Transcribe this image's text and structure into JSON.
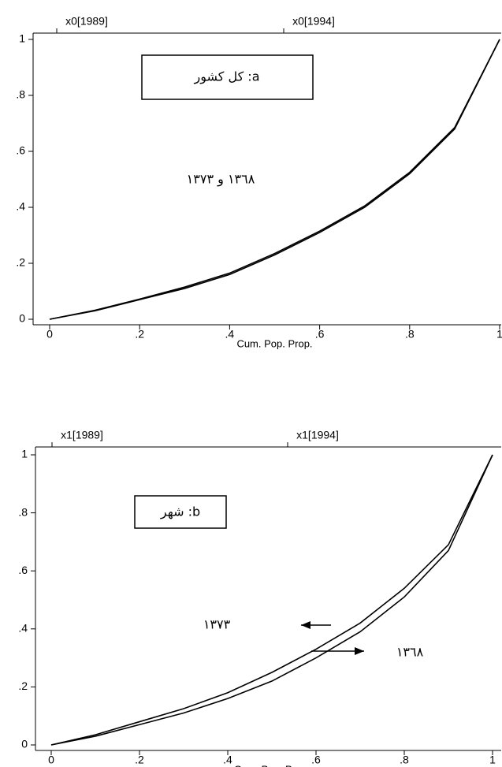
{
  "chart_data": [
    {
      "type": "line",
      "xlabel": "Cum. Pop. Prop.",
      "x": [
        0,
        0.1,
        0.2,
        0.3,
        0.4,
        0.5,
        0.6,
        0.7,
        0.8,
        0.9,
        1
      ],
      "series": [
        {
          "name": "x0[1989]",
          "color": "#000000",
          "values": [
            0,
            0.03,
            0.07,
            0.11,
            0.16,
            0.23,
            0.31,
            0.4,
            0.52,
            0.68,
            1
          ]
        },
        {
          "name": "x0[1994]",
          "color": "#000000",
          "values": [
            0,
            0.032,
            0.072,
            0.115,
            0.165,
            0.235,
            0.315,
            0.405,
            0.525,
            0.685,
            1
          ]
        }
      ],
      "xlim": [
        0,
        1
      ],
      "ylim": [
        0,
        1
      ],
      "xticks": [
        0,
        {
          "value": 0.2,
          "label": ".2"
        },
        {
          "value": 0.4,
          "label": ".4"
        },
        {
          "value": 0.6,
          "label": ".6"
        },
        {
          "value": 0.8,
          "label": ".8"
        },
        1
      ],
      "yticks": [
        0,
        {
          "value": 0.2,
          "label": ".2"
        },
        {
          "value": 0.4,
          "label": ".4"
        },
        {
          "value": 0.6,
          "label": ".6"
        },
        {
          "value": 0.8,
          "label": ".8"
        },
        1
      ],
      "legend": "top",
      "annotations": [
        "a: کل کشور",
        "١٣٦٨ و ١٣٧٣"
      ]
    },
    {
      "type": "line",
      "xlabel": "Cum. Pop. Prop.",
      "x": [
        0,
        0.1,
        0.2,
        0.3,
        0.4,
        0.5,
        0.6,
        0.7,
        0.8,
        0.9,
        1
      ],
      "series": [
        {
          "name": "x1[1989]",
          "color": "#000000",
          "values": [
            0,
            0.03,
            0.07,
            0.11,
            0.16,
            0.22,
            0.3,
            0.39,
            0.51,
            0.67,
            1
          ]
        },
        {
          "name": "x1[1994]",
          "color": "#000000",
          "values": [
            0,
            0.035,
            0.08,
            0.125,
            0.18,
            0.25,
            0.33,
            0.42,
            0.54,
            0.69,
            1
          ]
        }
      ],
      "xlim": [
        0,
        1
      ],
      "ylim": [
        0,
        1
      ],
      "xticks": [
        0,
        {
          "value": 0.2,
          "label": ".2"
        },
        {
          "value": 0.4,
          "label": ".4"
        },
        {
          "value": 0.6,
          "label": ".6"
        },
        {
          "value": 0.8,
          "label": ".8"
        },
        1
      ],
      "yticks": [
        0,
        {
          "value": 0.2,
          "label": ".2"
        },
        {
          "value": 0.4,
          "label": ".4"
        },
        {
          "value": 0.6,
          "label": ".6"
        },
        {
          "value": 0.8,
          "label": ".8"
        },
        1
      ],
      "legend": "top",
      "annotations": [
        "b: شهر",
        "١٣٧٣",
        "١٣٦٨"
      ]
    }
  ]
}
